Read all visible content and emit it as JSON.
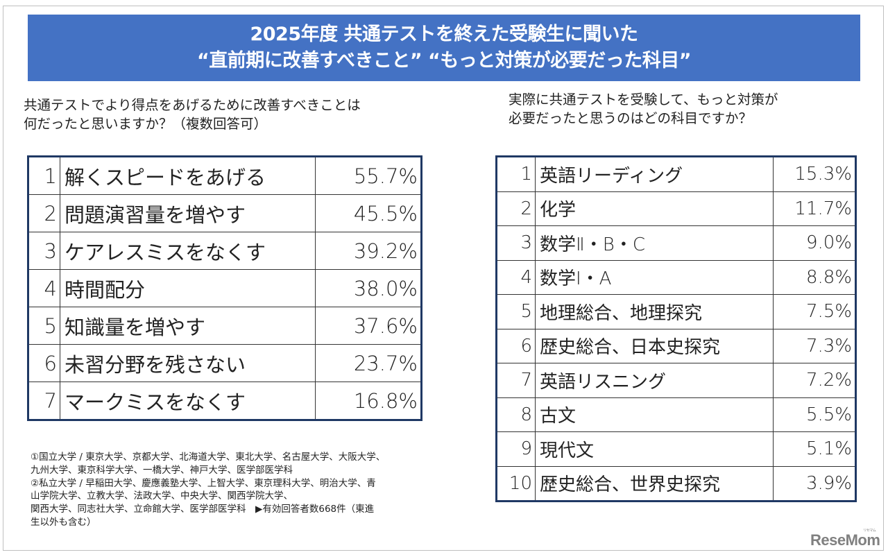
{
  "banner": {
    "line1": "2025年度 共通テストを終えた受験生に聞いた",
    "line2": "“直前期に改善すべきこと” “もっと対策が必要だった科目”"
  },
  "left": {
    "question_line1": "共通テストでより得点をあげるために改善すべきことは",
    "question_line2": "何だったと思いますか？（複数回答可）",
    "rows": [
      {
        "rank": "1",
        "label": "解くスピードをあげる",
        "value": "55.7%"
      },
      {
        "rank": "2",
        "label": "問題演習量を増やす",
        "value": "45.5%"
      },
      {
        "rank": "3",
        "label": "ケアレスミスをなくす",
        "value": "39.2%"
      },
      {
        "rank": "4",
        "label": "時間配分",
        "value": "38.0%"
      },
      {
        "rank": "5",
        "label": "知識量を増やす",
        "value": "37.6%"
      },
      {
        "rank": "6",
        "label": "未習分野を残さない",
        "value": "23.7%"
      },
      {
        "rank": "7",
        "label": "マークミスをなくす",
        "value": "16.8%"
      }
    ]
  },
  "right": {
    "question_line1": "実際に共通テストを受験して、もっと対策が",
    "question_line2": "必要だったと思うのはどの科目ですか？",
    "rows": [
      {
        "rank": "1",
        "label": "英語リーディング",
        "value": "15.3%"
      },
      {
        "rank": "2",
        "label": "化学",
        "value": "11.7%"
      },
      {
        "rank": "3",
        "label": "数学Ⅱ・B・C",
        "value": "9.0%"
      },
      {
        "rank": "4",
        "label": "数学Ⅰ・A",
        "value": "8.8%"
      },
      {
        "rank": "5",
        "label": "地理総合、地理探究",
        "value": "7.5%"
      },
      {
        "rank": "6",
        "label": "歴史総合、日本史探究",
        "value": "7.3%"
      },
      {
        "rank": "7",
        "label": "英語リスニング",
        "value": "7.2%"
      },
      {
        "rank": "8",
        "label": "古文",
        "value": "5.5%"
      },
      {
        "rank": "9",
        "label": "現代文",
        "value": "5.1%"
      },
      {
        "rank": "10",
        "label": "歴史総合、世界史探究",
        "value": "3.9%"
      }
    ]
  },
  "notes": {
    "lines": [
      "①国立大学 / 東京大学、京都大学、北海道大学、東北大学、名古屋大学、大阪大学、",
      "九州大学、東京科学大学、一橋大学、神戸大学、医学部医学科",
      "②私立大学 / 早稲田大学、慶應義塾大学、上智大学、東京理科大学、明治大学、青",
      "山学院大学、立教大学、法政大学、中央大学、関西学院大学、",
      "関西大学、同志社大学、立命館大学、医学部医学科　▶有効回答者数668件（東進",
      "生以外も含む）"
    ]
  },
  "logo": {
    "text": "ReseMom",
    "kana": "リセマム"
  },
  "colors": {
    "banner": "#4472C4",
    "table_border": "#1f3864"
  }
}
